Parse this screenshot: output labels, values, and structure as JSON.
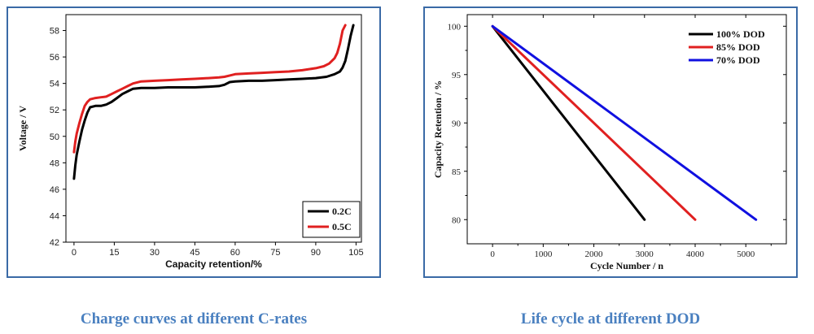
{
  "chart_data": [
    {
      "type": "line",
      "title": "Charge curves at different C-rates",
      "xlabel": "Capacity retention/%",
      "ylabel": "Voltage / V",
      "xlim": [
        -3,
        107
      ],
      "ylim": [
        42,
        59.2
      ],
      "xticks": [
        0,
        15,
        30,
        45,
        60,
        75,
        90,
        105
      ],
      "yticks": [
        42,
        44,
        46,
        48,
        50,
        52,
        54,
        56,
        58
      ],
      "legend_position": "bottom-right",
      "series": [
        {
          "name": "0.2C",
          "color": "#000000",
          "x": [
            0,
            0.5,
            1,
            2,
            3,
            4,
            5,
            6,
            8,
            10,
            12,
            14,
            16,
            18,
            20,
            22,
            25,
            30,
            35,
            40,
            45,
            50,
            54,
            56,
            58,
            60,
            65,
            70,
            75,
            80,
            85,
            90,
            94,
            97,
            99,
            100,
            101,
            102,
            103,
            104
          ],
          "y": [
            46.8,
            47.8,
            48.6,
            49.6,
            50.5,
            51.2,
            51.8,
            52.2,
            52.3,
            52.3,
            52.4,
            52.6,
            52.9,
            53.2,
            53.4,
            53.6,
            53.65,
            53.65,
            53.7,
            53.7,
            53.7,
            53.75,
            53.8,
            53.9,
            54.1,
            54.15,
            54.2,
            54.2,
            54.25,
            54.3,
            54.35,
            54.4,
            54.5,
            54.7,
            54.9,
            55.2,
            55.7,
            56.6,
            57.6,
            58.4
          ]
        },
        {
          "name": "0.5C",
          "color": "#e02020",
          "x": [
            0,
            0.5,
            1,
            2,
            3,
            4,
            5,
            6,
            8,
            10,
            12,
            14,
            16,
            18,
            20,
            22,
            25,
            30,
            35,
            40,
            45,
            50,
            54,
            56,
            58,
            60,
            65,
            70,
            75,
            80,
            85,
            90,
            93,
            95,
            97,
            98,
            99,
            100,
            101
          ],
          "y": [
            48.8,
            49.6,
            50.2,
            51.0,
            51.7,
            52.3,
            52.6,
            52.8,
            52.9,
            52.95,
            53.0,
            53.2,
            53.4,
            53.6,
            53.8,
            54.0,
            54.15,
            54.2,
            54.25,
            54.3,
            54.35,
            54.4,
            54.45,
            54.5,
            54.6,
            54.7,
            54.75,
            54.8,
            54.85,
            54.9,
            55.0,
            55.15,
            55.3,
            55.5,
            55.9,
            56.3,
            57.0,
            58.0,
            58.4
          ]
        }
      ]
    },
    {
      "type": "line",
      "title": "Life cycle at different DOD",
      "xlabel": "Cycle Number / n",
      "ylabel": "Capacity Retention / %",
      "xlim": [
        -500,
        5800
      ],
      "ylim": [
        77.5,
        101.2
      ],
      "xticks": [
        0,
        1000,
        2000,
        3000,
        4000,
        5000
      ],
      "yticks": [
        80,
        85,
        90,
        95,
        100
      ],
      "legend_position": "top-right",
      "series": [
        {
          "name": "100% DOD",
          "color": "#000000",
          "x": [
            0,
            3000
          ],
          "y": [
            100,
            80
          ]
        },
        {
          "name": "85% DOD",
          "color": "#e02020",
          "x": [
            0,
            4000
          ],
          "y": [
            100,
            80
          ]
        },
        {
          "name": "70% DOD",
          "color": "#1010e0",
          "x": [
            0,
            5200
          ],
          "y": [
            100,
            80
          ]
        }
      ]
    }
  ]
}
